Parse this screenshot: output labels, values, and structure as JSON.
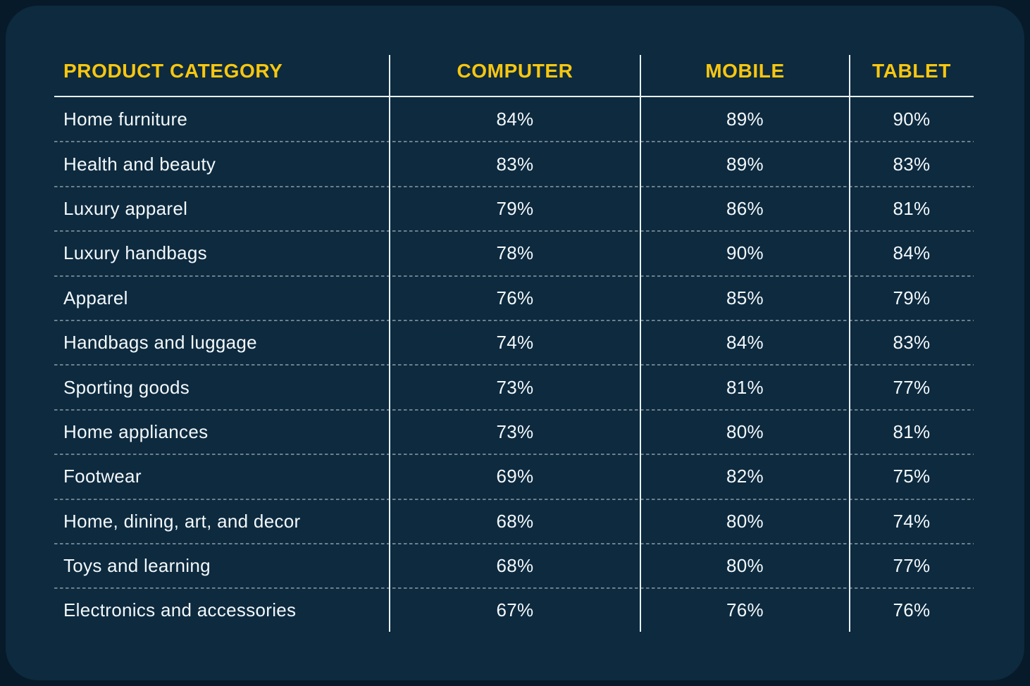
{
  "colors": {
    "outer_background": "#071a29",
    "card_background": "#0d2a3f",
    "header_text": "#f8c70f",
    "body_text": "#f3f8fa",
    "solid_line": "#e9f1f5",
    "dashed_line": "#6e808b"
  },
  "table": {
    "columns": [
      "PRODUCT CATEGORY",
      "COMPUTER",
      "MOBILE",
      "TABLET"
    ],
    "rows": [
      {
        "category": "Home furniture",
        "computer": "84%",
        "mobile": "89%",
        "tablet": "90%"
      },
      {
        "category": "Health and beauty",
        "computer": "83%",
        "mobile": "89%",
        "tablet": "83%"
      },
      {
        "category": "Luxury apparel",
        "computer": "79%",
        "mobile": "86%",
        "tablet": "81%"
      },
      {
        "category": "Luxury handbags",
        "computer": "78%",
        "mobile": "90%",
        "tablet": "84%"
      },
      {
        "category": "Apparel",
        "computer": "76%",
        "mobile": "85%",
        "tablet": "79%"
      },
      {
        "category": "Handbags and luggage",
        "computer": "74%",
        "mobile": "84%",
        "tablet": "83%"
      },
      {
        "category": "Sporting goods",
        "computer": "73%",
        "mobile": "81%",
        "tablet": "77%"
      },
      {
        "category": "Home appliances",
        "computer": "73%",
        "mobile": "80%",
        "tablet": "81%"
      },
      {
        "category": "Footwear",
        "computer": "69%",
        "mobile": "82%",
        "tablet": "75%"
      },
      {
        "category": "Home, dining, art, and decor",
        "computer": "68%",
        "mobile": "80%",
        "tablet": "74%"
      },
      {
        "category": "Toys and learning",
        "computer": "68%",
        "mobile": "80%",
        "tablet": "77%"
      },
      {
        "category": "Electronics and accessories",
        "computer": "67%",
        "mobile": "76%",
        "tablet": "76%"
      }
    ]
  },
  "chart_data": {
    "type": "table",
    "unit": "%",
    "categories": [
      "Home furniture",
      "Health and beauty",
      "Luxury apparel",
      "Luxury handbags",
      "Apparel",
      "Handbags and luggage",
      "Sporting goods",
      "Home appliances",
      "Footwear",
      "Home, dining, art, and decor",
      "Toys and learning",
      "Electronics and accessories"
    ],
    "series": [
      {
        "name": "Computer",
        "values": [
          84,
          83,
          79,
          78,
          76,
          74,
          73,
          73,
          69,
          68,
          68,
          67
        ]
      },
      {
        "name": "Mobile",
        "values": [
          89,
          89,
          86,
          90,
          85,
          84,
          81,
          80,
          82,
          80,
          80,
          76
        ]
      },
      {
        "name": "Tablet",
        "values": [
          90,
          83,
          81,
          84,
          79,
          83,
          77,
          81,
          75,
          74,
          77,
          76
        ]
      }
    ]
  }
}
